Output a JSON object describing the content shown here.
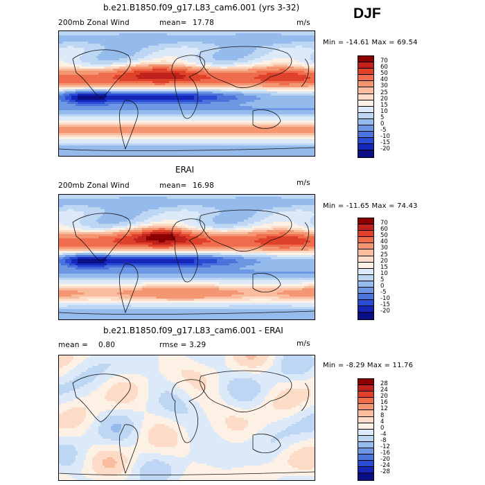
{
  "season": "DJF",
  "panels": [
    {
      "title": "b.e21.B1850.f09_g17.L83_cam6.001 (yrs 3-32)",
      "left_label": "200mb Zonal Wind",
      "mean_label": "mean=",
      "mean_value": "17.78",
      "units": "m/s",
      "minmax": "Min = -14.61 Max =  69.54",
      "colorbar_labels": [
        "70",
        "60",
        "50",
        "40",
        "30",
        "25",
        "20",
        "15",
        "10",
        "5",
        "0",
        "-5",
        "-10",
        "-15",
        "-20"
      ],
      "field": "model"
    },
    {
      "title": "ERAI",
      "left_label": "200mb Zonal Wind",
      "mean_label": "mean=",
      "mean_value": "16.98",
      "units": "m/s",
      "minmax": "Min = -11.65 Max =  74.43",
      "colorbar_labels": [
        "70",
        "60",
        "50",
        "40",
        "30",
        "25",
        "20",
        "15",
        "10",
        "5",
        "0",
        "-5",
        "-10",
        "-15",
        "-20"
      ],
      "field": "obs"
    },
    {
      "title": "b.e21.B1850.f09_g17.L83_cam6.001 - ERAI",
      "left_label": "mean =",
      "mean_label": "0.80",
      "mean_value": "rmse =    3.29",
      "units": "m/s",
      "minmax": "Min =  -8.29 Max =  11.76",
      "colorbar_labels": [
        "28",
        "24",
        "20",
        "16",
        "12",
        "8",
        "4",
        "0",
        "-4",
        "-8",
        "-12",
        "-16",
        "-20",
        "-24",
        "-28"
      ],
      "field": "diff"
    }
  ],
  "colors": {
    "seq16": [
      "#8b0000",
      "#c1211b",
      "#e0412a",
      "#ef6d4d",
      "#f59673",
      "#f9bc9f",
      "#fcdcc6",
      "#fdf1e6",
      "#dce9f8",
      "#bcd6f3",
      "#95baec",
      "#6d97e2",
      "#4b73dc",
      "#2a4bd6",
      "#1526b8",
      "#0b0f86"
    ]
  }
}
